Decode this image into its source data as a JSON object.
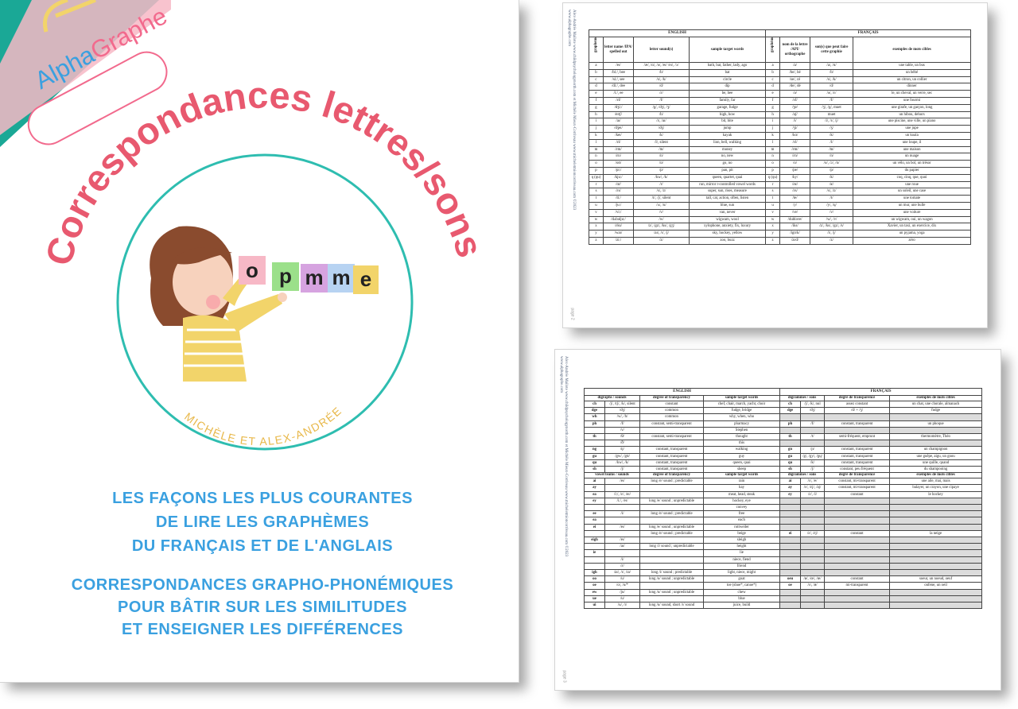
{
  "cover": {
    "logo": {
      "alpha": "Alpha",
      "graphe": "Graphe"
    },
    "title": "Correspondances lettres/sons",
    "letter_cards": [
      "o",
      "p",
      "m",
      "m",
      "e"
    ],
    "authors": "MICHÈLE ET ALEX-ANDRÉE",
    "subtitle_lines": [
      "LES FAÇONS LES PLUS COURANTES",
      "DE LIRE LES GRAPHÈMES",
      "DU FRANÇAIS ET DE L'ANGLAIS"
    ],
    "tagline_lines": [
      "CORRESPONDANCES GRAPHO-PHONÉMIQUES",
      "POUR BÂTIR SUR LES SIMILITUDES",
      "ET ENSEIGNER LES DIFFÉRENCES"
    ],
    "colors": {
      "title": "#e8596f",
      "accent_blue": "#3aa0e0",
      "teal": "#1aa896",
      "circle": "#2ebdb0",
      "author": "#e8b84a",
      "logo_pink": "#f26a8d"
    }
  },
  "page2": {
    "sidebar": "Alex-Andrée Mailote www.childpsychologynorth.com et Michèle Mieux-Corriveau www.micheletmioncorriveau.com ©2023",
    "sidebar2": "www.alphagraphe.com",
    "page_number": "page 2",
    "english_heading": "ENGLISH",
    "french_heading": "FRANÇAIS",
    "en_columns": [
      "graphemes",
      "letter name /IPA/ spelled out",
      "letter sound(s)",
      "sample target words"
    ],
    "fr_columns": [
      "graphèmes",
      "nom de la lettre /API/ orthographe",
      "son(s) que peut faire cette graphie",
      "exemples de mots cibles"
    ],
    "rows": [
      [
        "a",
        "/eɪ/",
        "/æ/, /ɑ/, /ə/, /eɪ/ /eɪ/, /ɔ/",
        "bath, bat, father, lady, ago",
        "a",
        "/a/",
        "/a/, /ɑ/",
        "une table, un bus"
      ],
      [
        "b",
        "/biː/, bee",
        "/b/",
        "bat",
        "b",
        "/be/, bé",
        "/b/",
        "un bébé"
      ],
      [
        "c",
        "/siː/, see",
        "/s/, /k/",
        "circle",
        "c",
        "/se/, cé",
        "/s/, /k/",
        "un citron, un collier"
      ],
      [
        "d",
        "/diː/, dee",
        "/d/",
        "dip",
        "d",
        "/de/, dé",
        "/d/",
        "dinner"
      ],
      [
        "e",
        "/iː/, ee",
        "/ɛ/",
        "be, bee",
        "e",
        "/ə/",
        "/ə/, /ɛ/",
        "le, un cheval, un verre, sec"
      ],
      [
        "f",
        "/ɛf/",
        "/f/",
        "family, far",
        "f",
        "/ɛf/",
        "/f/",
        "une fourmi"
      ],
      [
        "g",
        "/dʒiː/",
        "/g/, /dʒ/, /ʒ/",
        "garage, fudge",
        "g",
        "/ʒe/",
        "/ʒ/, /g/, muet",
        "une girafe, un garçon, long"
      ],
      [
        "h",
        "/eɪtʃ/",
        "/h/",
        "high, how",
        "h",
        "/aʃ/",
        "muet",
        "un hibou, dehors"
      ],
      [
        "i",
        "/aɪ/",
        "/ɪ/, /aɪ/",
        "bit, bite",
        "i",
        "/i/",
        "/i/, /ɪ/, /j/",
        "une piscine, une ville, un piano"
      ],
      [
        "j",
        "/dʒeɪ/",
        "/dʒ/",
        "jump",
        "j",
        "/ʒi/",
        "/ʒ/",
        "une jupe"
      ],
      [
        "k",
        "/keɪ/",
        "/k/",
        "kayak",
        "k",
        "/kɑ/",
        "/k/",
        "un koala"
      ],
      [
        "l",
        "/ɛl/",
        "/l/, silent",
        "lion, bell, walking",
        "l",
        "/ɛl/",
        "/l/",
        "une loupe, il"
      ],
      [
        "m",
        "/ɛm/",
        "/m/",
        "money",
        "m",
        "/ɛm/",
        "/m/",
        "une maison"
      ],
      [
        "n",
        "/ɛn/",
        "/n/",
        "no, new",
        "n",
        "/ɛn/",
        "/n/",
        "un nuage"
      ],
      [
        "o",
        "/oʊ/",
        "/ɒ/",
        "go, no",
        "o",
        "/o/",
        "/o/, /ɔ/, /ɑ/",
        "un vélo, un bol, un trésor"
      ],
      [
        "p",
        "/piː/",
        "/p/",
        "pan, pit",
        "p",
        "/pe/",
        "/p/",
        "du papier"
      ],
      [
        "q (qu)",
        "/kjuː/",
        "/kw/, /k/",
        "queen, quartet, quai",
        "q (qu)",
        "/ky/",
        "/k/",
        "coq, cinq, que, quoi"
      ],
      [
        "r",
        "/ɑr/",
        "/r/",
        "run, mirror r-controlled vowel words",
        "r",
        "/ɛʁ/",
        "/ʁ/",
        "une roue"
      ],
      [
        "s",
        "/ɛs/",
        "/s/, /z/",
        "super, sun, rises, measure",
        "s",
        "/ɛs/",
        "/s/, /z/",
        "un soleil, une case"
      ],
      [
        "t",
        "/tiː/",
        "/t/, /ʃ/, silent",
        "tall, cat, action, often, listen",
        "t",
        "/te/",
        "/t/",
        "une tomate"
      ],
      [
        "u",
        "/juː/",
        "/ʌ/, /u/",
        "blue, sun",
        "u",
        "/y/",
        "/y/, /ɥ/",
        "un mur, une bulle"
      ],
      [
        "v",
        "/viː/",
        "/v/",
        "van, never",
        "v",
        "/ve/",
        "/v/",
        "une voiture"
      ],
      [
        "w",
        "/dʌbəljuː/",
        "/w/",
        "wigwam, wool",
        "w",
        "/dubləve/",
        "/w/, /v/",
        "un wigwam, oui, un wagon"
      ],
      [
        "x",
        "/ɛks/",
        "/z/, /gz/, /ks/, /gʒ/",
        "xylophone, anxiety, fix, luxury",
        "x",
        "/iks/",
        "/z/, /ks/, /gz/, /s/",
        "Xavier, un taxi, un exercice, dix"
      ],
      [
        "y",
        "/waɪ/",
        "/aɪ/, /ɪ/, /j/",
        "sky, hockey, yellow",
        "y",
        "/igrɛk/",
        "/i/, /j/",
        "un pyjama, yoga"
      ],
      [
        "z",
        "/ziː/",
        "/z/",
        "zoo, buzz",
        "z",
        "/zɛd/",
        "/z/",
        "zéro"
      ]
    ]
  },
  "page3": {
    "sidebar": "Alex-Andrée Mailote www.childpsychologynorth.com et Michèle Mieux-Corriveau www.micheletmioncorriveau.com ©2023",
    "sidebar2": "www.alphagraphe.com",
    "page_number": "page 3",
    "english_heading": "ENGLISH",
    "french_heading": "FRANÇAIS",
    "en_columns_1": [
      "digraphs / sounds",
      "",
      "degree of transparency",
      "sample target words"
    ],
    "fr_columns_1": [
      "digrammes / sons",
      "",
      "degré de transparence",
      "exemples de mots cibles"
    ],
    "en_columns_2": [
      "vowel teams / sounds",
      "",
      "degree of transparency",
      "sample target words"
    ],
    "fr_columns_2": [
      "digrammes / sons",
      "",
      "degré de transparence",
      "exemples de mots cibles"
    ],
    "rows1": [
      [
        "ch",
        "/ʃ/, /tʃ/, /k/, silent",
        "constant",
        "chef, chair, march, yacht, choir",
        "ch",
        "/ʃ/, /k/, nul",
        "assez constant",
        "un chat, une chorale, almanach"
      ],
      [
        "dge",
        "/dʒ/",
        "common",
        "fudge, bridge",
        "dge",
        "/dʒ/",
        "/d/ + /ʒ/",
        "fudge"
      ],
      [
        "wh",
        "/w/, /h/",
        "common",
        "why, when, who",
        "",
        "",
        "",
        ""
      ],
      [
        "ph",
        "/f/",
        "constant, semi-transparent",
        "pharmacy",
        "ph",
        "/f/",
        "constant, transparent",
        "un phoque"
      ],
      [
        "",
        "/v/",
        "",
        "Stephen",
        "",
        "",
        "",
        ""
      ],
      [
        "th",
        "/θ/",
        "constant, semi-transparent",
        "thought",
        "th",
        "/t/",
        "semi-fréquent, emprunt",
        "thermomètre, Théo"
      ],
      [
        "",
        "/ð/",
        "",
        "this",
        "",
        "",
        "",
        ""
      ],
      [
        "ng",
        "/ŋ/",
        "constant, transparent",
        "walking",
        "gn",
        "/ɲ/",
        "constant, transparent",
        "un champignon"
      ],
      [
        "gu",
        "/gw/, /gʊ/",
        "constant, transparent",
        "guy",
        "gu",
        "/g/, /gy/, /gɥ/",
        "constant, transparent",
        "une guêpe, aigu, un gnou"
      ],
      [
        "qu",
        "/kw/, /k/",
        "constant, transparent",
        "queen, quai",
        "qu",
        "/k/",
        "constant, transparent",
        "une quille, quand"
      ],
      [
        "sh",
        "/ʃ/",
        "constant, transparent",
        "sheep",
        "sh",
        "/ʃ/",
        "constant, peu fréquent",
        "du shampooing"
      ]
    ],
    "rows2": [
      [
        "ai",
        "/eɪ/",
        "long /e/ sound ; predictable",
        "rain",
        "ai",
        "/ɛ/, /e/",
        "constant, mi-transparent",
        "une aile, mai, mais"
      ],
      [
        "ay",
        "",
        "",
        "hay",
        "ay",
        "/ɛ/, /ɛj/, /aj/",
        "constant, mi-transparent",
        "balayer, un crayon, une cipaye"
      ],
      [
        "ea",
        "/iː/, /ɛ/, /eɪ/",
        "",
        "meat, head, steak",
        "ey",
        "/ɛ/, /i/",
        "constant",
        "le hockey"
      ],
      [
        "ey",
        "/iː/, /eɪ/",
        "long /e/ sound ; unpredictable",
        "hockey, eye",
        "",
        "",
        "",
        ""
      ],
      [
        "",
        "",
        "",
        "convey",
        "",
        "",
        "",
        ""
      ],
      [
        "ee",
        "/i/",
        "long /e/ sound ; predictable",
        "free",
        "",
        "",
        "",
        ""
      ],
      [
        "ea",
        "",
        "",
        "each",
        "",
        "",
        "",
        ""
      ],
      [
        "ei",
        "/eɪ/",
        "long /e/ sound ; unpredictable",
        "rottweiler",
        "",
        "",
        "",
        ""
      ],
      [
        "",
        "",
        "long /e/ sound ; predictable",
        "beige",
        "ei",
        "/ɛ/, /ɛj/",
        "constant",
        "la neige"
      ],
      [
        "eigh",
        "/eɪ/",
        "",
        "sleigh",
        "",
        "",
        "",
        ""
      ],
      [
        "",
        "/aɪ/",
        "long /i/ sound ; unpredictable",
        "height",
        "",
        "",
        "",
        ""
      ],
      [
        "ie",
        "",
        "",
        "lie",
        "",
        "",
        "",
        ""
      ],
      [
        "",
        "/i/",
        "",
        "niece, fiend",
        "",
        "",
        "",
        ""
      ],
      [
        "",
        "/ɛ/",
        "",
        "friend",
        "",
        "",
        "",
        ""
      ],
      [
        "igh",
        "/aɪ/, /ɪ/, /ɪə/",
        "long /i/ sound ; predictable",
        "light, niece, might",
        "",
        "",
        "",
        ""
      ],
      [
        "oo",
        "/u/",
        "long /o/ sound ; unpredictable",
        "goat",
        "oeu",
        "/ø/, /œ/, /œ/",
        "constant",
        "soeur, un noeud, oeuf"
      ],
      [
        "oe",
        "/o/, /u/*",
        "",
        "toe (shoe*, canoe*)",
        "oe",
        "/ɛ/, /ø/",
        "mi-transparent",
        "onfene, un oeil"
      ],
      [
        "ew",
        "/ju/",
        "long /u/ sound ; unpredictable",
        "chew",
        "",
        "",
        "",
        ""
      ],
      [
        "ue",
        "/u/",
        "",
        "blue",
        "",
        "",
        "",
        ""
      ],
      [
        "ui",
        "/u/, /ɪ/",
        "long /u/ sound, short /ɪ/ sound",
        "juice, build",
        "",
        "",
        "",
        ""
      ]
    ]
  }
}
